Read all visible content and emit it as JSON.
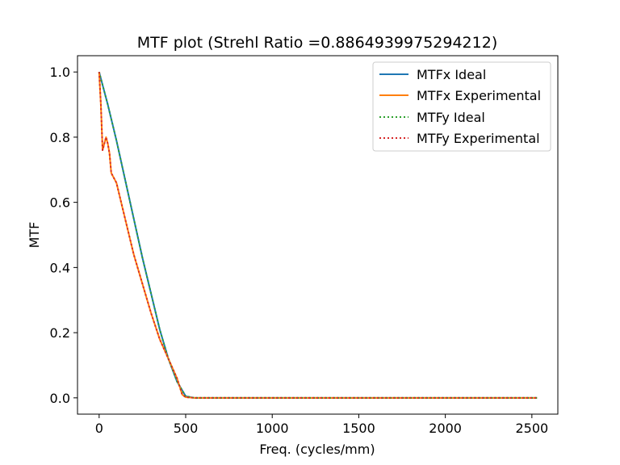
{
  "chart_data": {
    "type": "line",
    "title": "MTF plot (Strehl Ratio =0.8864939975294212)",
    "xlabel": "Freq. (cycles/mm)",
    "ylabel": "MTF",
    "xlim": [
      -125,
      2650
    ],
    "ylim": [
      -0.05,
      1.05
    ],
    "xticks": [
      0,
      500,
      1000,
      1500,
      2000,
      2500
    ],
    "yticks": [
      0.0,
      0.2,
      0.4,
      0.6,
      0.8,
      1.0
    ],
    "xtick_labels": [
      "0",
      "500",
      "1000",
      "1500",
      "2000",
      "2500"
    ],
    "ytick_labels": [
      "0.0",
      "0.2",
      "0.4",
      "0.6",
      "0.8",
      "1.0"
    ],
    "legend_position": "top-right",
    "grid": false,
    "series": [
      {
        "name": "MTFx Ideal",
        "color": "#1f77b4",
        "style": "solid",
        "x": [
          0,
          50,
          100,
          150,
          200,
          250,
          300,
          350,
          400,
          450,
          500,
          550,
          1000,
          1500,
          2000,
          2530
        ],
        "y": [
          1.0,
          0.9,
          0.79,
          0.67,
          0.55,
          0.43,
          0.32,
          0.21,
          0.12,
          0.05,
          0.005,
          0.0,
          0.0,
          0.0,
          0.0,
          0.0
        ]
      },
      {
        "name": "MTFx Experimental",
        "color": "#ff7f0e",
        "style": "solid",
        "x": [
          0,
          10,
          20,
          30,
          40,
          50,
          60,
          70,
          80,
          90,
          100,
          150,
          200,
          250,
          300,
          350,
          400,
          450,
          480,
          500,
          550,
          1000,
          1500,
          2000,
          2530
        ],
        "y": [
          1.0,
          0.9,
          0.76,
          0.78,
          0.8,
          0.78,
          0.75,
          0.69,
          0.68,
          0.67,
          0.66,
          0.55,
          0.44,
          0.35,
          0.26,
          0.18,
          0.12,
          0.06,
          0.01,
          0.002,
          0.0,
          0.0,
          0.0,
          0.0,
          0.0
        ]
      },
      {
        "name": "MTFy Ideal",
        "color": "#2ca02c",
        "style": "dotted",
        "x": [
          0,
          50,
          100,
          150,
          200,
          250,
          300,
          350,
          400,
          450,
          500,
          550,
          1000,
          1500,
          2000,
          2530
        ],
        "y": [
          1.0,
          0.9,
          0.79,
          0.67,
          0.55,
          0.43,
          0.32,
          0.21,
          0.12,
          0.05,
          0.005,
          0.0,
          0.0,
          0.0,
          0.0,
          0.0
        ]
      },
      {
        "name": "MTFy Experimental",
        "color": "#d62728",
        "style": "dotted",
        "x": [
          0,
          10,
          20,
          30,
          40,
          50,
          60,
          70,
          80,
          90,
          100,
          150,
          200,
          250,
          300,
          350,
          400,
          450,
          480,
          500,
          550,
          1000,
          1500,
          2000,
          2530
        ],
        "y": [
          1.0,
          0.9,
          0.76,
          0.78,
          0.8,
          0.78,
          0.75,
          0.69,
          0.68,
          0.67,
          0.66,
          0.55,
          0.44,
          0.35,
          0.26,
          0.18,
          0.12,
          0.06,
          0.01,
          0.002,
          0.0,
          0.0,
          0.0,
          0.0,
          0.0
        ]
      }
    ]
  }
}
